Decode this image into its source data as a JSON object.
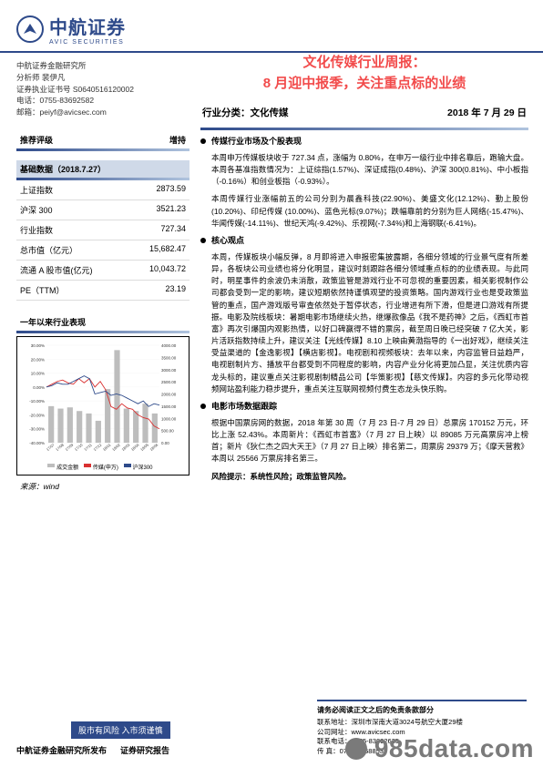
{
  "logo": {
    "cn": "中航证券",
    "en": "AVIC SECURITIES"
  },
  "org": {
    "dept": "中航证券金融研究所",
    "analyst": "分析师  裴伊凡",
    "cert": "证券执业证书号  S0640516120002",
    "tel": "电话：0755-83692582",
    "mail": "邮箱：peiyf@avicsec.com"
  },
  "title_l1": "文化传媒行业周报：",
  "title_l2": "8 月迎中报季，关注重点标的业绩",
  "classify_label": "行业分类：文化传媒",
  "report_date": "2018 年 7 月 29 日",
  "rating": {
    "label": "推荐评级",
    "value": "增持"
  },
  "basic_header": "基础数据（2018.7.27）",
  "basic": [
    {
      "k": "上证指数",
      "v": "2873.59"
    },
    {
      "k": "沪深 300",
      "v": "3521.23"
    },
    {
      "k": "行业指数",
      "v": "727.34"
    },
    {
      "k": "总市值（亿元）",
      "v": "15,682.47"
    },
    {
      "k": "流通 A 股市值(亿元)",
      "v": "10,043.72"
    },
    {
      "k": "PE（TTM）",
      "v": "23.19"
    }
  ],
  "chart": {
    "title": "一年以来行业表现",
    "y_left_ticks": [
      "30.00%",
      "20.00%",
      "10.00%",
      "0.00%",
      "-10.00%",
      "-20.00%",
      "-30.00%",
      "-40.00%"
    ],
    "y_right_ticks": [
      "4000.00",
      "3500.00",
      "3000.00",
      "2500.00",
      "2000.00",
      "1500.00",
      "1000.00",
      "500.00",
      "0.00"
    ],
    "x_ticks": [
      "17/07",
      "17/08",
      "17/09",
      "17/10",
      "17/11",
      "17/12",
      "18/01",
      "18/02",
      "18/03",
      "18/04",
      "18/05",
      "18/06"
    ],
    "bar_color": "#bdbdbd",
    "bar_values": [
      1500,
      1400,
      1450,
      1300,
      1200,
      900,
      2200,
      3800,
      1400,
      1300,
      1600,
      1200
    ],
    "line1_color": "#d93030",
    "line1_values": [
      0,
      2,
      4,
      5,
      3,
      2,
      6,
      3,
      6,
      0,
      4,
      -2,
      -14,
      -16,
      -12,
      -15,
      -16,
      -20,
      -22,
      -23,
      -28,
      -30
    ],
    "line2_color": "#2e4a8a",
    "line2_values": [
      0,
      1,
      3,
      2,
      2,
      4,
      6,
      8,
      6,
      -5,
      -4,
      -3,
      -6,
      -5,
      -6,
      -8,
      -10,
      -12,
      -10,
      -14,
      -12,
      -13
    ],
    "legend": [
      "成交金额",
      "传媒(申万)",
      "沪深300"
    ],
    "source_label": "来源：wind"
  },
  "sections": [
    {
      "h": "传媒行业市场及个股表现",
      "paras": [
        "本周申万传媒板块收于 727.34 点，涨幅为 0.80%，在申万一级行业中排名靠后，跑输大盘。本周各基准指数情况为：上证综指(1.57%)、深证成指(0.48%)、沪深 300(0.81%)、中小板指（-0.16%）和创业板指（-0.93%）。",
        "本周传媒行业涨幅前五的公司分别为晨鑫科技(22.90%)、美盛文化(12.12%)、勤上股份(10.20%)、印纪传媒 (10.00%)、蓝色光标(9.07%)；跌幅靠前的分别为巨人网络(-15.47%)、华闻传媒(-14.11%)、世纪天鸿(-9.42%)、乐视网(-7.34%)和上海钢联(-6.41%)。"
      ]
    },
    {
      "h": "核心观点",
      "paras": [
        "本周，传媒板块小幅反弹，8 月即将进入申报密集披露期，各细分领域的行业景气度有所差异，各板块公司业绩也将分化明显，建议时刻跟踪各细分领域重点标的的业绩表现。与此同时，明星事件的余波仍未消散，政策监管是游戏行业不可忽视的重要因素，相关影视制作公司都会受到一定的影响，建议短期依然持谨慎观望的投资策略。国内游戏行业也是受政策监管的重点，国产游戏版号审查依然处于暂停状态，行业增进有所下滑，但是进口游戏有所提振。电影及院线板块：暑期电影市场继续火热，继爆款像品《我不是药神》之后，《西虹市首富》再次引爆国内观影热情，以好口碑赢得不错的票房，截至周日晚已经突破 7 亿大关，影片活跃指数持续上升，建议关注【光线传媒】8.10 上映由黄渤指导的《一出好戏》，继续关注受益渠道的【金逸影视】【横店影视】。电视剧和视频板块：去年以来，内容监管日益趋严，电视剧制片方、播放平台都受到不同程度的影响，内容产业分化将更加凸显，关注优质内容龙头标的，建议重点关注影视剧制精品公司【华策影视】【慈文传媒】。内容的多元化带动视频网站盈利能力稳步提升，重点关注互联网视频付费生态龙头快乐购。"
      ]
    },
    {
      "h": "电影市场数据跟踪",
      "paras": [
        "根据中国票房网的数据，2018 年第 30 周（7 月 23 日-7 月 29 日）总票房 170152 万元，环比上涨 52.43%。本周新片：《西虹市首富》（7 月 27 日上映）以 89085 万元高票房冲上榜首；新片《狄仁杰之四大天王》（7 月 27 日上映）排名第二，周票房 29379 万；《摩天营救》本周以 25566 万票房排名第三。"
      ]
    }
  ],
  "risk_label": "风险提示：",
  "risk_text": "系统性风险；政策监管风险。",
  "footer": {
    "banner": "股市有风险  入市须谨慎",
    "issuer": "中航证券金融研究所发布",
    "doc_type": "证券研究报告",
    "disclaimer_title": "请务必阅读正文之后的免责条款部分",
    "addr": "联系地址：深圳市深南大道3024号航空大厦29楼",
    "site": "公司网址：www.avicsec.com",
    "tel": "联系电话：0755-83692635",
    "fax": "传    真：0755-83688539"
  },
  "watermark": "985data.com",
  "page": "1"
}
